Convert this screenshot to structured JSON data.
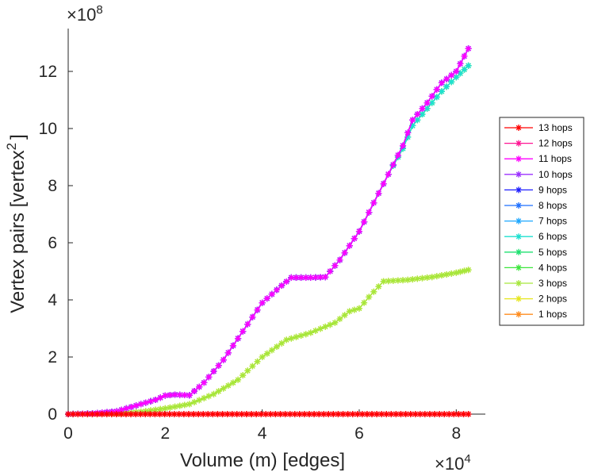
{
  "chart_data": {
    "type": "line",
    "title": "",
    "xlabel": "Volume (m) [edges]",
    "ylabel": "Vertex pairs [vertex",
    "ylabel_superscript": "2",
    "ylabel_close": "]",
    "x_multiplier": "×10",
    "x_exponent": "4",
    "y_multiplier": "×10",
    "y_exponent": "8",
    "xlim": [
      0,
      8.6
    ],
    "ylim": [
      0,
      13.5
    ],
    "xticks": [
      0,
      2,
      4,
      6,
      8
    ],
    "yticks": [
      0,
      2,
      4,
      6,
      8,
      10,
      12
    ],
    "xtick_labels": [
      "0",
      "2",
      "4",
      "6",
      "8"
    ],
    "ytick_labels": [
      "0",
      "2",
      "4",
      "6",
      "8",
      "10",
      "12"
    ],
    "x_units_note": "x values in units of 10^4 edges",
    "y_units_note": "y values in units of 10^8 vertex^2",
    "grid": false,
    "legend_position": "right",
    "marker": "*",
    "series": [
      {
        "name": "13 hops",
        "color": "#ff0000",
        "shape": "flat"
      },
      {
        "name": "12 hops",
        "color": "#ff1493",
        "shape": "flat"
      },
      {
        "name": "11 hops",
        "color": "#ff00ff",
        "shape": "upper"
      },
      {
        "name": "10 hops",
        "color": "#9b30ff",
        "shape": "upper"
      },
      {
        "name": "9 hops",
        "color": "#1f1fff",
        "shape": "upper"
      },
      {
        "name": "8 hops",
        "color": "#1e6fff",
        "shape": "upper"
      },
      {
        "name": "7 hops",
        "color": "#1ea8ff",
        "shape": "upper"
      },
      {
        "name": "6 hops",
        "color": "#1ee0d0",
        "shape": "upper"
      },
      {
        "name": "5 hops",
        "color": "#1ee070",
        "shape": "upper"
      },
      {
        "name": "4 hops",
        "color": "#3ce63c",
        "shape": "upper"
      },
      {
        "name": "3 hops",
        "color": "#a6e63c",
        "shape": "middle"
      },
      {
        "name": "2 hops",
        "color": "#e6e61e",
        "shape": "middle"
      },
      {
        "name": "1 hops",
        "color": "#ff8c1e",
        "shape": "flat"
      }
    ],
    "curves": {
      "upper": {
        "x": [
          0,
          0.5,
          1.0,
          1.5,
          1.8,
          2.0,
          2.2,
          2.5,
          2.8,
          3.2,
          3.6,
          4.0,
          4.4,
          4.6,
          5.0,
          5.3,
          5.6,
          6.0,
          6.3,
          6.6,
          6.9,
          7.1,
          7.4,
          7.7,
          8.0,
          8.25
        ],
        "y": [
          0,
          0.02,
          0.1,
          0.35,
          0.5,
          0.65,
          0.68,
          0.66,
          1.1,
          1.9,
          2.9,
          3.9,
          4.5,
          4.78,
          4.78,
          4.8,
          5.4,
          6.4,
          7.4,
          8.4,
          9.3,
          10.1,
          10.7,
          11.3,
          11.8,
          12.2
        ]
      },
      "upper_lead": {
        "x": [
          6.9,
          7.1,
          7.4,
          7.7,
          8.0,
          8.25
        ],
        "y": [
          9.4,
          10.3,
          10.9,
          11.6,
          12.0,
          12.8
        ]
      },
      "middle": {
        "x": [
          0,
          1.0,
          1.5,
          2.0,
          2.5,
          3.0,
          3.5,
          4.0,
          4.5,
          5.0,
          5.5,
          5.8,
          6.0,
          6.2,
          6.5,
          7.0,
          7.5,
          8.0,
          8.25
        ],
        "y": [
          0,
          0.02,
          0.08,
          0.2,
          0.35,
          0.7,
          1.2,
          2.0,
          2.6,
          2.85,
          3.2,
          3.6,
          3.7,
          4.1,
          4.65,
          4.7,
          4.8,
          4.95,
          5.05
        ]
      },
      "flat": {
        "x": [
          0,
          8.25
        ],
        "y": [
          0,
          0
        ]
      }
    }
  }
}
